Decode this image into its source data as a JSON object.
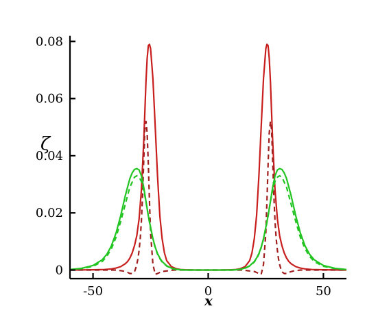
{
  "chart_data": {
    "type": "line",
    "title": "",
    "xlabel": "x",
    "ylabel": "ζ",
    "xlim": [
      -60,
      60
    ],
    "ylim": [
      -0.003,
      0.082
    ],
    "x_ticks": [
      -50,
      0,
      50
    ],
    "x_tick_labels": [
      "-50",
      "0",
      "50"
    ],
    "y_ticks": [
      0,
      0.02,
      0.04,
      0.06,
      0.08
    ],
    "y_tick_labels": [
      "0",
      "0.02",
      "0.04",
      "0.06",
      "0.08"
    ],
    "grid": false,
    "legend": "none",
    "series": [
      {
        "color": "#c81e1e",
        "style": "solid",
        "x": [
          -60,
          -50,
          -45,
          -42,
          -40,
          -38,
          -36,
          -35,
          -34,
          -33,
          -32,
          -31,
          -30,
          -29,
          -28,
          -27.5,
          -27,
          -26.5,
          -26,
          -25.5,
          -25,
          -24,
          -23,
          -22,
          -21,
          -20,
          -19,
          -18,
          -16,
          -14,
          -12,
          -10,
          -5,
          0,
          5,
          10,
          12,
          14,
          16,
          18,
          19,
          20,
          21,
          22,
          23,
          24,
          25,
          25.5,
          26,
          26.5,
          27,
          27.5,
          28,
          29,
          30,
          31,
          32,
          33,
          34,
          35,
          36,
          38,
          40,
          42,
          45,
          50,
          60
        ],
        "y": [
          0,
          0.0001,
          0.0002,
          0.0004,
          0.0007,
          0.0012,
          0.0022,
          0.003,
          0.0042,
          0.006,
          0.0085,
          0.012,
          0.018,
          0.028,
          0.045,
          0.055,
          0.066,
          0.074,
          0.0785,
          0.079,
          0.0775,
          0.067,
          0.05,
          0.033,
          0.019,
          0.011,
          0.006,
          0.0033,
          0.0012,
          0.0005,
          0.0002,
          0.0001,
          0,
          0,
          0,
          0.0001,
          0.0002,
          0.0005,
          0.0012,
          0.0033,
          0.006,
          0.011,
          0.019,
          0.033,
          0.05,
          0.067,
          0.0775,
          0.079,
          0.0785,
          0.074,
          0.066,
          0.055,
          0.045,
          0.028,
          0.018,
          0.012,
          0.0085,
          0.006,
          0.0042,
          0.003,
          0.0022,
          0.0012,
          0.0007,
          0.0004,
          0.0002,
          0.0001,
          0
        ]
      },
      {
        "color": "#a02020",
        "style": "dashed",
        "x": [
          -60,
          -45,
          -40,
          -37,
          -35,
          -34,
          -33,
          -32,
          -31.5,
          -31,
          -30.5,
          -30,
          -29.5,
          -29,
          -28.5,
          -28,
          -27.5,
          -27,
          -26.5,
          -26,
          -25.5,
          -25,
          -24,
          -23,
          -22,
          -20,
          -15,
          -10,
          -5,
          0,
          5,
          10,
          15,
          20,
          22,
          23,
          24,
          25,
          25.5,
          26,
          26.5,
          27,
          27.5,
          28,
          28.5,
          29,
          29.5,
          30,
          30.5,
          31,
          31.5,
          32,
          33,
          34,
          35,
          37,
          40,
          45,
          60
        ],
        "y": [
          0,
          0,
          0,
          -0.0003,
          -0.0008,
          -0.0012,
          -0.0012,
          -0.0006,
          0.0005,
          0.002,
          0.004,
          0.007,
          0.011,
          0.017,
          0.026,
          0.038,
          0.049,
          0.052,
          0.048,
          0.037,
          0.024,
          0.013,
          0.002,
          -0.0015,
          -0.0012,
          -0.0005,
          0,
          0,
          0,
          0,
          0,
          0,
          0,
          -0.0005,
          -0.0012,
          -0.0015,
          0.002,
          0.013,
          0.024,
          0.037,
          0.048,
          0.052,
          0.049,
          0.038,
          0.026,
          0.017,
          0.011,
          0.007,
          0.004,
          0.002,
          0.0005,
          -0.0006,
          -0.0012,
          -0.0012,
          -0.0008,
          -0.0003,
          0,
          0,
          0
        ]
      },
      {
        "color": "#22c422",
        "style": "solid",
        "x": [
          -60,
          -55,
          -50,
          -46,
          -44,
          -42,
          -40,
          -38,
          -36,
          -34,
          -33,
          -32,
          -31,
          -30,
          -29,
          -28,
          -27,
          -26,
          -25,
          -24,
          -23,
          -22,
          -21,
          -20,
          -18,
          -16,
          -14,
          -12,
          -10,
          -5,
          0,
          5,
          10,
          12,
          14,
          16,
          18,
          20,
          21,
          22,
          23,
          24,
          25,
          26,
          27,
          28,
          29,
          30,
          31,
          32,
          33,
          34,
          36,
          38,
          40,
          42,
          44,
          46,
          50,
          55,
          60
        ],
        "y": [
          0.0002,
          0.0006,
          0.0016,
          0.0036,
          0.0055,
          0.0085,
          0.013,
          0.019,
          0.026,
          0.032,
          0.034,
          0.0352,
          0.0355,
          0.035,
          0.033,
          0.029,
          0.024,
          0.019,
          0.015,
          0.011,
          0.008,
          0.0058,
          0.0042,
          0.003,
          0.0015,
          0.0007,
          0.0003,
          0.0001,
          0,
          0,
          0,
          0,
          0,
          0.0001,
          0.0003,
          0.0007,
          0.0015,
          0.003,
          0.0042,
          0.0058,
          0.008,
          0.011,
          0.015,
          0.019,
          0.024,
          0.029,
          0.033,
          0.035,
          0.0355,
          0.0352,
          0.034,
          0.032,
          0.026,
          0.019,
          0.013,
          0.0085,
          0.0055,
          0.0036,
          0.0016,
          0.0006,
          0.0002
        ]
      },
      {
        "color": "#22c422",
        "style": "dashed",
        "x": [
          -60,
          -55,
          -50,
          -46,
          -44,
          -42,
          -40,
          -38,
          -36,
          -34,
          -32,
          -31,
          -30,
          -29,
          -28,
          -27,
          -26,
          -25,
          -24,
          -23,
          -22,
          -21,
          -20,
          -18,
          -16,
          -14,
          -12,
          -10,
          -5,
          0,
          5,
          10,
          12,
          14,
          16,
          18,
          20,
          21,
          22,
          23,
          24,
          25,
          26,
          27,
          28,
          29,
          30,
          31,
          32,
          34,
          36,
          38,
          40,
          42,
          44,
          46,
          50,
          55,
          60
        ],
        "y": [
          0.0002,
          0.0005,
          0.0013,
          0.003,
          0.0048,
          0.0075,
          0.0115,
          0.017,
          0.023,
          0.029,
          0.0325,
          0.033,
          0.0325,
          0.031,
          0.028,
          0.024,
          0.019,
          0.0145,
          0.0108,
          0.0078,
          0.0056,
          0.004,
          0.0028,
          0.0014,
          0.0006,
          0.0002,
          0.0001,
          0,
          0,
          0,
          0,
          0,
          0.0001,
          0.0002,
          0.0006,
          0.0014,
          0.0028,
          0.004,
          0.0056,
          0.0078,
          0.0108,
          0.0145,
          0.019,
          0.024,
          0.028,
          0.031,
          0.0325,
          0.033,
          0.0325,
          0.029,
          0.023,
          0.017,
          0.0115,
          0.0075,
          0.0048,
          0.003,
          0.0013,
          0.0005,
          0.0002
        ]
      }
    ]
  }
}
